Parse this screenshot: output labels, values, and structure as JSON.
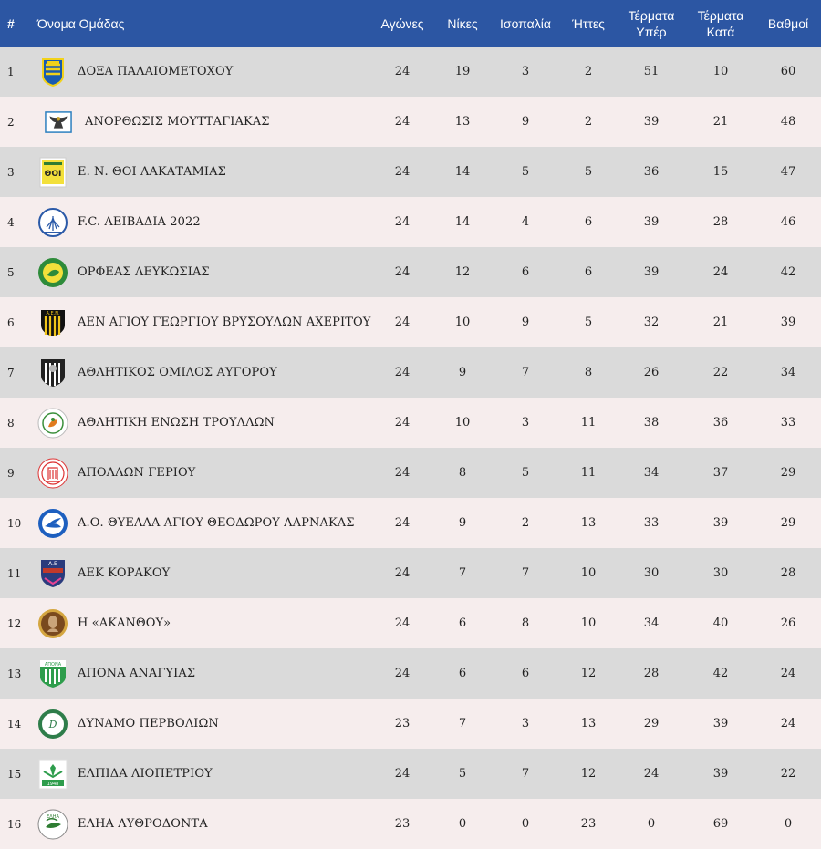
{
  "headers": {
    "pos": "#",
    "team": "Όνομα Ομάδας",
    "played": "Αγώνες",
    "wins": "Νίκες",
    "draws": "Ισοπαλία",
    "losses": "Ήττες",
    "gf_line1": "Τέρματα",
    "gf_line2": "Υπέρ",
    "ga_line1": "Τέρματα",
    "ga_line2": "Κατά",
    "points": "Βαθμοί"
  },
  "colors": {
    "header_bg": "#2c56a3",
    "row_odd": "#dadada",
    "row_even": "#f6eded"
  },
  "rows": [
    {
      "pos": "1",
      "team": "ΔΟΞΑ ΠΑΛΑΙΟΜΕΤΟΧΟΥ",
      "played": "24",
      "wins": "19",
      "draws": "3",
      "losses": "2",
      "gf": "51",
      "ga": "10",
      "points": "60",
      "logo": "doxa-crest-icon"
    },
    {
      "pos": "2",
      "team": "ΑΝΟΡΘΩΣΙΣ ΜΟΥΤΤΑΓΙΑΚΑΣ",
      "played": "24",
      "wins": "13",
      "draws": "9",
      "losses": "2",
      "gf": "39",
      "ga": "21",
      "points": "48",
      "logo": "eagle-crest-icon"
    },
    {
      "pos": "3",
      "team": "Ε. Ν. ΘΟΙ ΛΑΚΑΤΑΜΙΑΣ",
      "played": "24",
      "wins": "14",
      "draws": "5",
      "losses": "5",
      "gf": "36",
      "ga": "15",
      "points": "47",
      "logo": "thoi-crest-icon"
    },
    {
      "pos": "4",
      "team": "F.C. ΛΕΙΒΑΔΙΑ 2022",
      "played": "24",
      "wins": "14",
      "draws": "4",
      "losses": "6",
      "gf": "39",
      "ga": "28",
      "points": "46",
      "logo": "livadia-crest-icon"
    },
    {
      "pos": "5",
      "team": "ΟΡΦΕΑΣ ΛΕΥΚΩΣΙΑΣ",
      "played": "24",
      "wins": "12",
      "draws": "6",
      "losses": "6",
      "gf": "39",
      "ga": "24",
      "points": "42",
      "logo": "orfeas-crest-icon"
    },
    {
      "pos": "6",
      "team": "ΑΕΝ ΑΓΙΟΥ ΓΕΩΡΓΙΟΥ ΒΡΥΣΟΥΛΩΝ ΑΧΕΡΙΤΟΥ",
      "played": "24",
      "wins": "10",
      "draws": "9",
      "losses": "5",
      "gf": "32",
      "ga": "21",
      "points": "39",
      "logo": "aen-crest-icon"
    },
    {
      "pos": "7",
      "team": "ΑΘΛΗΤΙΚΟΣ ΟΜΙΛΟΣ ΑΥΓΟΡΟΥ",
      "played": "24",
      "wins": "9",
      "draws": "7",
      "losses": "8",
      "gf": "26",
      "ga": "22",
      "points": "34",
      "logo": "avgorou-crest-icon"
    },
    {
      "pos": "8",
      "team": "ΑΘΛΗΤΙΚΗ ΕΝΩΣΗ ΤΡΟΥΛΛΩΝ",
      "played": "24",
      "wins": "10",
      "draws": "3",
      "losses": "11",
      "gf": "38",
      "ga": "36",
      "points": "33",
      "logo": "troullon-crest-icon"
    },
    {
      "pos": "9",
      "team": "ΑΠΟΛΛΩΝ ΓΕΡΙΟΥ",
      "played": "24",
      "wins": "8",
      "draws": "5",
      "losses": "11",
      "gf": "34",
      "ga": "37",
      "points": "29",
      "logo": "apollon-crest-icon"
    },
    {
      "pos": "10",
      "team": "Α.Ο. ΘΥΕΛΛΑ ΑΓΙΟΥ ΘΕΟΔΩΡΟΥ ΛΑΡΝΑΚΑΣ",
      "played": "24",
      "wins": "9",
      "draws": "2",
      "losses": "13",
      "gf": "33",
      "ga": "39",
      "points": "29",
      "logo": "thyella-crest-icon"
    },
    {
      "pos": "11",
      "team": "ΑΕΚ ΚΟΡΑΚΟΥ",
      "played": "24",
      "wins": "7",
      "draws": "7",
      "losses": "10",
      "gf": "30",
      "ga": "30",
      "points": "28",
      "logo": "aek-crest-icon"
    },
    {
      "pos": "12",
      "team": "Η «ΑΚΑΝΘΟΥ»",
      "played": "24",
      "wins": "6",
      "draws": "8",
      "losses": "10",
      "gf": "34",
      "ga": "40",
      "points": "26",
      "logo": "akanthou-crest-icon"
    },
    {
      "pos": "13",
      "team": "ΑΠΟΝΑ ΑΝΑΓΥΙΑΣ",
      "played": "24",
      "wins": "6",
      "draws": "6",
      "losses": "12",
      "gf": "28",
      "ga": "42",
      "points": "24",
      "logo": "apona-crest-icon"
    },
    {
      "pos": "14",
      "team": "ΔΥΝΑΜΟ ΠΕΡΒΟΛΙΩΝ",
      "played": "23",
      "wins": "7",
      "draws": "3",
      "losses": "13",
      "gf": "29",
      "ga": "39",
      "points": "24",
      "logo": "dynamo-crest-icon"
    },
    {
      "pos": "15",
      "team": "ΕΛΠΙΔΑ ΛΙΟΠΕΤΡΙΟΥ",
      "played": "24",
      "wins": "5",
      "draws": "7",
      "losses": "12",
      "gf": "24",
      "ga": "39",
      "points": "22",
      "logo": "elpida-crest-icon"
    },
    {
      "pos": "16",
      "team": "ΕΛΗΑ ΛΥΘΡΟΔΟΝΤΑ",
      "played": "23",
      "wins": "0",
      "draws": "0",
      "losses": "23",
      "gf": "0",
      "ga": "69",
      "points": "0",
      "logo": "elia-crest-icon"
    }
  ]
}
